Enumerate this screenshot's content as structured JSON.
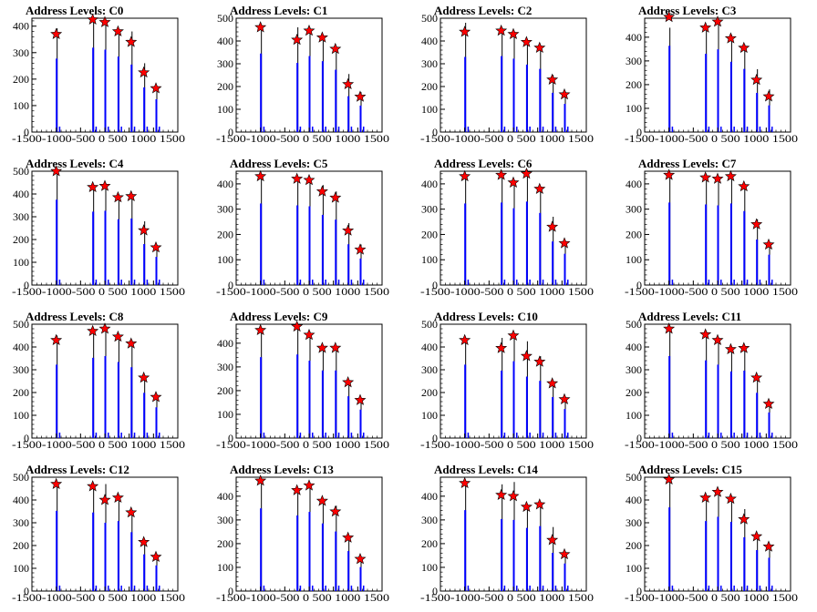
{
  "chart_data": [
    {
      "type": "bar",
      "title": "Address Levels: C0",
      "xlim": [
        -1500,
        1500
      ],
      "ylim": [
        0,
        430
      ],
      "xticks": [
        -1500,
        -1000,
        -500,
        0,
        500,
        1000,
        1500
      ],
      "xtick_labels": [
        "-1500",
        "-1000",
        "",
        "",
        "",
        "",
        "1500"
      ],
      "yticks": [
        0,
        100,
        200,
        300,
        400
      ],
      "xtick_text": "-1500-1000-500 0 500 1000 1500",
      "levels": [
        {
          "x": -1000,
          "y": 370
        },
        {
          "x": -250,
          "y": 425
        },
        {
          "x": 0,
          "y": 415
        },
        {
          "x": 270,
          "y": 380
        },
        {
          "x": 540,
          "y": 340
        },
        {
          "x": 800,
          "y": 225
        },
        {
          "x": 1050,
          "y": 165
        }
      ],
      "peaks": [
        {
          "x": -1000,
          "y": 392
        },
        {
          "x": -250,
          "y": 430
        },
        {
          "x": 0,
          "y": 410
        },
        {
          "x": 270,
          "y": 390
        },
        {
          "x": 540,
          "y": 380
        },
        {
          "x": 800,
          "y": 260
        },
        {
          "x": 1050,
          "y": 170
        }
      ]
    },
    {
      "type": "bar",
      "title": "Address Levels: C1",
      "xlim": [
        -1500,
        1500
      ],
      "ylim": [
        0,
        500
      ],
      "yticks": [
        0,
        100,
        200,
        300,
        400,
        500
      ],
      "levels": [
        {
          "x": -1000,
          "y": 460
        },
        {
          "x": -250,
          "y": 405
        },
        {
          "x": 0,
          "y": 445
        },
        {
          "x": 270,
          "y": 415
        },
        {
          "x": 540,
          "y": 365
        },
        {
          "x": 800,
          "y": 210
        },
        {
          "x": 1050,
          "y": 155
        }
      ],
      "peaks": [
        {
          "x": -1000,
          "y": 470
        },
        {
          "x": -250,
          "y": 460
        },
        {
          "x": 0,
          "y": 455
        },
        {
          "x": 270,
          "y": 410
        },
        {
          "x": 540,
          "y": 375
        },
        {
          "x": 800,
          "y": 255
        },
        {
          "x": 1050,
          "y": 175
        }
      ]
    },
    {
      "type": "bar",
      "title": "Address Levels: C2",
      "xlim": [
        -1500,
        1500
      ],
      "ylim": [
        0,
        500
      ],
      "yticks": [
        0,
        100,
        200,
        300,
        400,
        500
      ],
      "levels": [
        {
          "x": -1000,
          "y": 440
        },
        {
          "x": -250,
          "y": 445
        },
        {
          "x": 0,
          "y": 430
        },
        {
          "x": 270,
          "y": 395
        },
        {
          "x": 540,
          "y": 370
        },
        {
          "x": 800,
          "y": 230
        },
        {
          "x": 1050,
          "y": 165
        }
      ],
      "peaks": [
        {
          "x": -1000,
          "y": 480
        },
        {
          "x": -250,
          "y": 460
        },
        {
          "x": 0,
          "y": 445
        },
        {
          "x": 270,
          "y": 400
        },
        {
          "x": 540,
          "y": 380
        },
        {
          "x": 800,
          "y": 250
        },
        {
          "x": 1050,
          "y": 175
        }
      ]
    },
    {
      "type": "bar",
      "title": "Address Levels: C3",
      "xlim": [
        -1500,
        1500
      ],
      "ylim": [
        0,
        480
      ],
      "yticks": [
        0,
        100,
        200,
        300,
        400
      ],
      "levels": [
        {
          "x": -1000,
          "y": 485
        },
        {
          "x": -250,
          "y": 440
        },
        {
          "x": 0,
          "y": 465
        },
        {
          "x": 270,
          "y": 395
        },
        {
          "x": 540,
          "y": 355
        },
        {
          "x": 800,
          "y": 220
        },
        {
          "x": 1050,
          "y": 150
        }
      ],
      "peaks": [
        {
          "x": -1000,
          "y": 440
        },
        {
          "x": -250,
          "y": 440
        },
        {
          "x": 0,
          "y": 470
        },
        {
          "x": 270,
          "y": 410
        },
        {
          "x": 540,
          "y": 370
        },
        {
          "x": 800,
          "y": 265
        },
        {
          "x": 1050,
          "y": 180
        }
      ]
    },
    {
      "type": "bar",
      "title": "Address Levels: C4",
      "xlim": [
        -1500,
        1500
      ],
      "ylim": [
        0,
        500
      ],
      "yticks": [
        0,
        100,
        200,
        300,
        400,
        500
      ],
      "levels": [
        {
          "x": -1000,
          "y": 500
        },
        {
          "x": -250,
          "y": 430
        },
        {
          "x": 0,
          "y": 435
        },
        {
          "x": 270,
          "y": 385
        },
        {
          "x": 540,
          "y": 390
        },
        {
          "x": 800,
          "y": 240
        },
        {
          "x": 1050,
          "y": 165
        }
      ],
      "peaks": [
        {
          "x": -1000,
          "y": 500
        },
        {
          "x": -250,
          "y": 440
        },
        {
          "x": 0,
          "y": 445
        },
        {
          "x": 270,
          "y": 400
        },
        {
          "x": 540,
          "y": 400
        },
        {
          "x": 800,
          "y": 280
        },
        {
          "x": 1050,
          "y": 175
        }
      ]
    },
    {
      "type": "bar",
      "title": "Address Levels: C5",
      "xlim": [
        -1500,
        1500
      ],
      "ylim": [
        0,
        450
      ],
      "yticks": [
        0,
        100,
        200,
        300,
        400
      ],
      "levels": [
        {
          "x": -1000,
          "y": 430
        },
        {
          "x": -250,
          "y": 420
        },
        {
          "x": 0,
          "y": 415
        },
        {
          "x": 270,
          "y": 370
        },
        {
          "x": 540,
          "y": 345
        },
        {
          "x": 800,
          "y": 215
        },
        {
          "x": 1050,
          "y": 140
        }
      ],
      "peaks": [
        {
          "x": -1000,
          "y": 440
        },
        {
          "x": -250,
          "y": 420
        },
        {
          "x": 0,
          "y": 425
        },
        {
          "x": 270,
          "y": 395
        },
        {
          "x": 540,
          "y": 370
        },
        {
          "x": 800,
          "y": 245
        },
        {
          "x": 1050,
          "y": 160
        }
      ]
    },
    {
      "type": "bar",
      "title": "Address Levels: C6",
      "xlim": [
        -1500,
        1500
      ],
      "ylim": [
        0,
        450
      ],
      "yticks": [
        0,
        100,
        200,
        300,
        400
      ],
      "levels": [
        {
          "x": -1000,
          "y": 430
        },
        {
          "x": -250,
          "y": 435
        },
        {
          "x": 0,
          "y": 405
        },
        {
          "x": 270,
          "y": 440
        },
        {
          "x": 540,
          "y": 380
        },
        {
          "x": 800,
          "y": 230
        },
        {
          "x": 1050,
          "y": 165
        }
      ],
      "peaks": [
        {
          "x": -1000,
          "y": 440
        },
        {
          "x": -250,
          "y": 440
        },
        {
          "x": 0,
          "y": 415
        },
        {
          "x": 270,
          "y": 455
        },
        {
          "x": 540,
          "y": 375
        },
        {
          "x": 800,
          "y": 270
        },
        {
          "x": 1050,
          "y": 175
        }
      ]
    },
    {
      "type": "bar",
      "title": "Address Levels: C7",
      "xlim": [
        -1500,
        1500
      ],
      "ylim": [
        0,
        450
      ],
      "yticks": [
        0,
        100,
        200,
        300,
        400
      ],
      "levels": [
        {
          "x": -1000,
          "y": 435
        },
        {
          "x": -250,
          "y": 425
        },
        {
          "x": 0,
          "y": 420
        },
        {
          "x": 270,
          "y": 430
        },
        {
          "x": 540,
          "y": 390
        },
        {
          "x": 800,
          "y": 240
        },
        {
          "x": 1050,
          "y": 160
        }
      ],
      "peaks": [
        {
          "x": -1000,
          "y": 440
        },
        {
          "x": -250,
          "y": 440
        },
        {
          "x": 0,
          "y": 430
        },
        {
          "x": 270,
          "y": 440
        },
        {
          "x": 540,
          "y": 400
        },
        {
          "x": 800,
          "y": 260
        },
        {
          "x": 1050,
          "y": 170
        }
      ]
    },
    {
      "type": "bar",
      "title": "Address Levels: C8",
      "xlim": [
        -1500,
        1500
      ],
      "ylim": [
        0,
        500
      ],
      "yticks": [
        0,
        100,
        200,
        300,
        400,
        500
      ],
      "levels": [
        {
          "x": -1000,
          "y": 430
        },
        {
          "x": -250,
          "y": 470
        },
        {
          "x": 0,
          "y": 480
        },
        {
          "x": 270,
          "y": 445
        },
        {
          "x": 540,
          "y": 415
        },
        {
          "x": 800,
          "y": 265
        },
        {
          "x": 1050,
          "y": 180
        }
      ],
      "peaks": [
        {
          "x": -1000,
          "y": 450
        },
        {
          "x": -250,
          "y": 480
        },
        {
          "x": 0,
          "y": 490
        },
        {
          "x": 270,
          "y": 455
        },
        {
          "x": 540,
          "y": 430
        },
        {
          "x": 800,
          "y": 275
        },
        {
          "x": 1050,
          "y": 190
        }
      ]
    },
    {
      "type": "bar",
      "title": "Address Levels: C9",
      "xlim": [
        -1500,
        1500
      ],
      "ylim": [
        0,
        480
      ],
      "yticks": [
        0,
        100,
        200,
        300,
        400
      ],
      "levels": [
        {
          "x": -1000,
          "y": 455
        },
        {
          "x": -250,
          "y": 470
        },
        {
          "x": 0,
          "y": 435
        },
        {
          "x": 270,
          "y": 380
        },
        {
          "x": 540,
          "y": 380
        },
        {
          "x": 800,
          "y": 235
        },
        {
          "x": 1050,
          "y": 160
        }
      ],
      "peaks": [
        {
          "x": -1000,
          "y": 460
        },
        {
          "x": -250,
          "y": 470
        },
        {
          "x": 0,
          "y": 440
        },
        {
          "x": 270,
          "y": 385
        },
        {
          "x": 540,
          "y": 385
        },
        {
          "x": 800,
          "y": 240
        },
        {
          "x": 1050,
          "y": 170
        }
      ]
    },
    {
      "type": "bar",
      "title": "Address Levels: C10",
      "xlim": [
        -1500,
        1500
      ],
      "ylim": [
        0,
        500
      ],
      "yticks": [
        0,
        100,
        200,
        300,
        400,
        500
      ],
      "levels": [
        {
          "x": -1000,
          "y": 430
        },
        {
          "x": -250,
          "y": 395
        },
        {
          "x": 0,
          "y": 450
        },
        {
          "x": 270,
          "y": 360
        },
        {
          "x": 540,
          "y": 335
        },
        {
          "x": 800,
          "y": 240
        },
        {
          "x": 1050,
          "y": 170
        }
      ],
      "peaks": [
        {
          "x": -1000,
          "y": 440
        },
        {
          "x": -250,
          "y": 440
        },
        {
          "x": 0,
          "y": 460
        },
        {
          "x": 270,
          "y": 425
        },
        {
          "x": 540,
          "y": 360
        },
        {
          "x": 800,
          "y": 250
        },
        {
          "x": 1050,
          "y": 180
        }
      ]
    },
    {
      "type": "bar",
      "title": "Address Levels: C11",
      "xlim": [
        -1500,
        1500
      ],
      "ylim": [
        0,
        500
      ],
      "yticks": [
        0,
        100,
        200,
        300,
        400,
        500
      ],
      "levels": [
        {
          "x": -1000,
          "y": 480
        },
        {
          "x": -250,
          "y": 455
        },
        {
          "x": 0,
          "y": 430
        },
        {
          "x": 270,
          "y": 390
        },
        {
          "x": 540,
          "y": 395
        },
        {
          "x": 800,
          "y": 265
        },
        {
          "x": 1050,
          "y": 150
        }
      ],
      "peaks": [
        {
          "x": -1000,
          "y": 490
        },
        {
          "x": -250,
          "y": 470
        },
        {
          "x": 0,
          "y": 440
        },
        {
          "x": 270,
          "y": 400
        },
        {
          "x": 540,
          "y": 405
        },
        {
          "x": 800,
          "y": 275
        },
        {
          "x": 1050,
          "y": 160
        }
      ]
    },
    {
      "type": "bar",
      "title": "Address Levels: C12",
      "xlim": [
        -1500,
        1500
      ],
      "ylim": [
        0,
        500
      ],
      "yticks": [
        0,
        100,
        200,
        300,
        400,
        500
      ],
      "levels": [
        {
          "x": -1000,
          "y": 470
        },
        {
          "x": -250,
          "y": 460
        },
        {
          "x": 0,
          "y": 400
        },
        {
          "x": 270,
          "y": 410
        },
        {
          "x": 540,
          "y": 345
        },
        {
          "x": 800,
          "y": 215
        },
        {
          "x": 1050,
          "y": 150
        }
      ],
      "peaks": [
        {
          "x": -1000,
          "y": 480
        },
        {
          "x": -250,
          "y": 470
        },
        {
          "x": 0,
          "y": 470
        },
        {
          "x": 270,
          "y": 420
        },
        {
          "x": 540,
          "y": 355
        },
        {
          "x": 800,
          "y": 225
        },
        {
          "x": 1050,
          "y": 160
        }
      ]
    },
    {
      "type": "bar",
      "title": "Address Levels: C13",
      "xlim": [
        -1500,
        1500
      ],
      "ylim": [
        0,
        480
      ],
      "yticks": [
        0,
        100,
        200,
        300,
        400
      ],
      "levels": [
        {
          "x": -1000,
          "y": 465
        },
        {
          "x": -250,
          "y": 425
        },
        {
          "x": 0,
          "y": 445
        },
        {
          "x": 270,
          "y": 380
        },
        {
          "x": 540,
          "y": 335
        },
        {
          "x": 800,
          "y": 225
        },
        {
          "x": 1050,
          "y": 135
        }
      ],
      "peaks": [
        {
          "x": -1000,
          "y": 470
        },
        {
          "x": -250,
          "y": 430
        },
        {
          "x": 0,
          "y": 450
        },
        {
          "x": 270,
          "y": 390
        },
        {
          "x": 540,
          "y": 360
        },
        {
          "x": 800,
          "y": 230
        },
        {
          "x": 1050,
          "y": 140
        }
      ]
    },
    {
      "type": "bar",
      "title": "Address Levels: C14",
      "xlim": [
        -1500,
        1500
      ],
      "ylim": [
        0,
        480
      ],
      "yticks": [
        0,
        100,
        200,
        300,
        400
      ],
      "levels": [
        {
          "x": -1000,
          "y": 455
        },
        {
          "x": -250,
          "y": 405
        },
        {
          "x": 0,
          "y": 400
        },
        {
          "x": 270,
          "y": 355
        },
        {
          "x": 540,
          "y": 365
        },
        {
          "x": 800,
          "y": 215
        },
        {
          "x": 1050,
          "y": 155
        }
      ],
      "peaks": [
        {
          "x": -1000,
          "y": 460
        },
        {
          "x": -250,
          "y": 450
        },
        {
          "x": 0,
          "y": 460
        },
        {
          "x": 270,
          "y": 365
        },
        {
          "x": 540,
          "y": 375
        },
        {
          "x": 800,
          "y": 270
        },
        {
          "x": 1050,
          "y": 165
        }
      ]
    },
    {
      "type": "bar",
      "title": "Address Levels: C15",
      "xlim": [
        -1500,
        1500
      ],
      "ylim": [
        0,
        500
      ],
      "yticks": [
        0,
        100,
        200,
        300,
        400,
        500
      ],
      "levels": [
        {
          "x": -1000,
          "y": 490
        },
        {
          "x": -250,
          "y": 410
        },
        {
          "x": 0,
          "y": 435
        },
        {
          "x": 270,
          "y": 405
        },
        {
          "x": 540,
          "y": 315
        },
        {
          "x": 800,
          "y": 240
        },
        {
          "x": 1050,
          "y": 195
        }
      ],
      "peaks": [
        {
          "x": -1000,
          "y": 495
        },
        {
          "x": -250,
          "y": 420
        },
        {
          "x": 0,
          "y": 440
        },
        {
          "x": 270,
          "y": 415
        },
        {
          "x": 540,
          "y": 360
        },
        {
          "x": 800,
          "y": 250
        },
        {
          "x": 1050,
          "y": 205
        }
      ]
    }
  ],
  "xtick_text": "-1500-1000-500 0 500 1000 1500",
  "colors": {
    "bar": "#0000ff",
    "marker": "#ff0000",
    "axis": "#000000"
  }
}
